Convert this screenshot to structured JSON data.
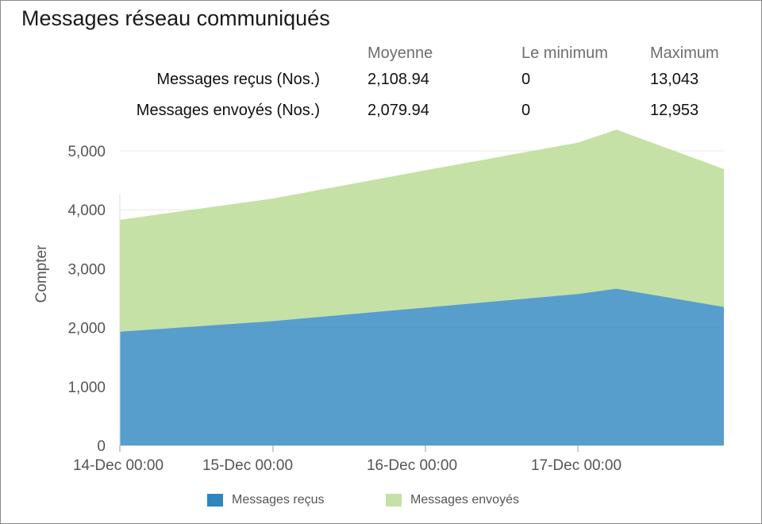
{
  "title": "Messages réseau communiqués",
  "stats": {
    "headers": [
      "Moyenne",
      "Le minimum",
      "Maximum"
    ],
    "rows": [
      {
        "label": "Messages reçus (Nos.)",
        "values": [
          "2,108.94",
          "0",
          "13,043"
        ]
      },
      {
        "label": "Messages envoyés (Nos.)",
        "values": [
          "2,079.94",
          "0",
          "12,953"
        ]
      }
    ]
  },
  "colors": {
    "received": "#2e86c1",
    "sent": "#c5e1a5"
  },
  "chart_data": {
    "type": "area",
    "stacked": true,
    "ylabel": "Compter",
    "xlabel": "",
    "ylim": [
      0,
      5000
    ],
    "yticks": [
      0,
      1000,
      2000,
      3000,
      4000,
      5000
    ],
    "ytick_labels": [
      "0",
      "1,000",
      "2,000",
      "3,000",
      "4,000",
      "5,000"
    ],
    "xticks": [
      "14-Dec 00:00",
      "15-Dec 00:00",
      "16-Dec 00:00",
      "17-Dec 00:00"
    ],
    "x": [
      "14-Dec 00:00",
      "15-Dec 00:00",
      "16-Dec 00:00",
      "17-Dec 00:00",
      "17-Dec 12:00",
      "18-Dec 00:00"
    ],
    "series": [
      {
        "name": "Messages reçus",
        "values": [
          1930,
          2110,
          2340,
          2570,
          2660,
          2350
        ]
      },
      {
        "name": "Messages envoyés",
        "values": [
          1900,
          2080,
          2330,
          2570,
          2700,
          2340
        ]
      }
    ],
    "grid": true,
    "legend": "bottom"
  }
}
